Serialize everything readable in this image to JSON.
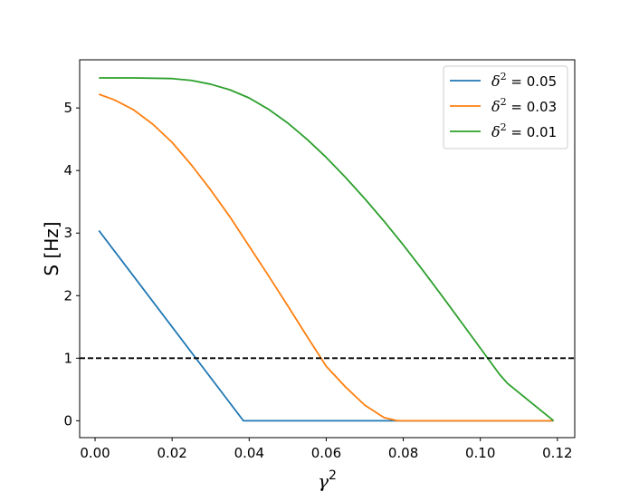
{
  "chart_data": {
    "type": "line",
    "title": "",
    "xlabel": "γ",
    "xlabel_sup": "2",
    "ylabel": "S [Hz]",
    "xlim": [
      -0.004,
      0.1245
    ],
    "ylim": [
      -0.27,
      5.77
    ],
    "xticks": [
      0.0,
      0.02,
      0.04,
      0.06,
      0.08,
      0.1,
      0.12
    ],
    "xtick_labels": [
      "0.00",
      "0.02",
      "0.04",
      "0.06",
      "0.08",
      "0.10",
      "0.12"
    ],
    "yticks": [
      0,
      1,
      2,
      3,
      4,
      5
    ],
    "ytick_labels": [
      "0",
      "1",
      "2",
      "3",
      "4",
      "5"
    ],
    "grid": false,
    "legend_position": "top-right",
    "reference_line": {
      "y": 1,
      "style": "dashed",
      "color": "#000000"
    },
    "series": [
      {
        "name": "δ² = 0.05",
        "legend_base": "δ",
        "legend_sup": "2",
        "legend_value": " = 0.05",
        "color": "#1f77b4",
        "x": [
          0.001,
          0.0385,
          0.119
        ],
        "y": [
          3.04,
          0.0,
          0.0
        ]
      },
      {
        "name": "δ² = 0.03",
        "legend_base": "δ",
        "legend_sup": "2",
        "legend_value": " = 0.03",
        "color": "#ff7f0e",
        "x": [
          0.001,
          0.005,
          0.01,
          0.015,
          0.02,
          0.025,
          0.03,
          0.035,
          0.04,
          0.045,
          0.05,
          0.055,
          0.06,
          0.065,
          0.07,
          0.075,
          0.0785,
          0.119
        ],
        "y": [
          5.22,
          5.13,
          4.97,
          4.74,
          4.45,
          4.09,
          3.69,
          3.26,
          2.79,
          2.32,
          1.84,
          1.35,
          0.87,
          0.54,
          0.25,
          0.05,
          0.0,
          0.0
        ]
      },
      {
        "name": "δ² = 0.01",
        "legend_base": "δ",
        "legend_sup": "2",
        "legend_value": " = 0.01",
        "color": "#2ca02c",
        "x": [
          0.001,
          0.01,
          0.02,
          0.025,
          0.03,
          0.035,
          0.04,
          0.045,
          0.05,
          0.055,
          0.06,
          0.065,
          0.07,
          0.075,
          0.08,
          0.085,
          0.09,
          0.095,
          0.1,
          0.105,
          0.107,
          0.11,
          0.115,
          0.119
        ],
        "y": [
          5.48,
          5.48,
          5.47,
          5.44,
          5.38,
          5.29,
          5.16,
          4.98,
          4.76,
          4.5,
          4.21,
          3.89,
          3.55,
          3.19,
          2.81,
          2.41,
          2.0,
          1.58,
          1.16,
          0.74,
          0.6,
          0.45,
          0.2,
          0.0
        ]
      }
    ]
  }
}
